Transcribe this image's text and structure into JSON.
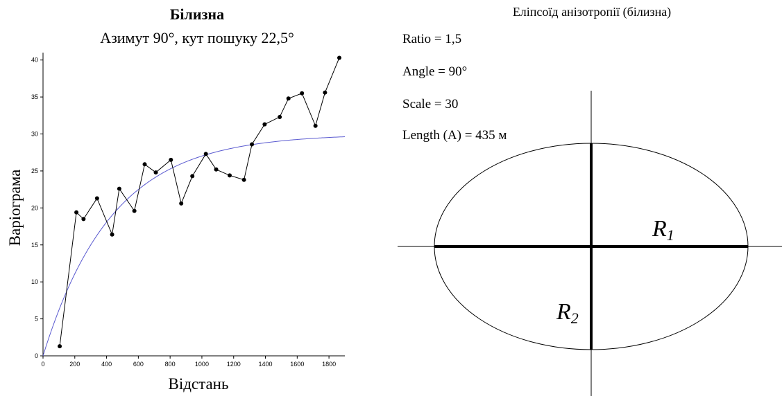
{
  "chart_data": {
    "type": "scatter",
    "title": "Білизна",
    "subtitle": "Азимут 90°, кут пошуку 22,5°",
    "xlabel": "Відстань",
    "ylabel": "Варіограма",
    "xlim": [
      0,
      1900
    ],
    "ylim": [
      0,
      41
    ],
    "xticks": [
      0,
      200,
      400,
      600,
      800,
      1000,
      1200,
      1400,
      1600,
      1800
    ],
    "yticks": [
      0,
      5,
      10,
      15,
      20,
      25,
      30,
      35,
      40
    ],
    "grid": false,
    "series": [
      {
        "kind": "empirical",
        "color": "#000000",
        "points": [
          [
            105,
            1.3
          ],
          [
            210,
            19.4
          ],
          [
            255,
            18.5
          ],
          [
            340,
            21.3
          ],
          [
            435,
            16.4
          ],
          [
            480,
            22.6
          ],
          [
            575,
            19.6
          ],
          [
            640,
            25.9
          ],
          [
            710,
            24.8
          ],
          [
            805,
            26.5
          ],
          [
            870,
            20.6
          ],
          [
            940,
            24.3
          ],
          [
            1025,
            27.3
          ],
          [
            1090,
            25.2
          ],
          [
            1175,
            24.4
          ],
          [
            1265,
            23.8
          ],
          [
            1315,
            28.6
          ],
          [
            1395,
            31.3
          ],
          [
            1490,
            32.3
          ],
          [
            1545,
            34.8
          ],
          [
            1630,
            35.5
          ],
          [
            1715,
            31.1
          ],
          [
            1775,
            35.6
          ],
          [
            1865,
            40.3
          ]
        ]
      },
      {
        "kind": "model",
        "color": "#5a5ad0",
        "sill": 30,
        "range": 1300,
        "model": "exponential"
      }
    ]
  },
  "ellipse": {
    "title": "Еліпсоїд анізотропії (білизна)",
    "ratio": "Ratio = 1,5",
    "angle": "Angle = 90°",
    "scale": "Scale = 30",
    "length": "Length (A) = 435 м",
    "r1_main": "R",
    "r1_sub": "1",
    "r2_main": "R",
    "r2_sub": "2"
  }
}
